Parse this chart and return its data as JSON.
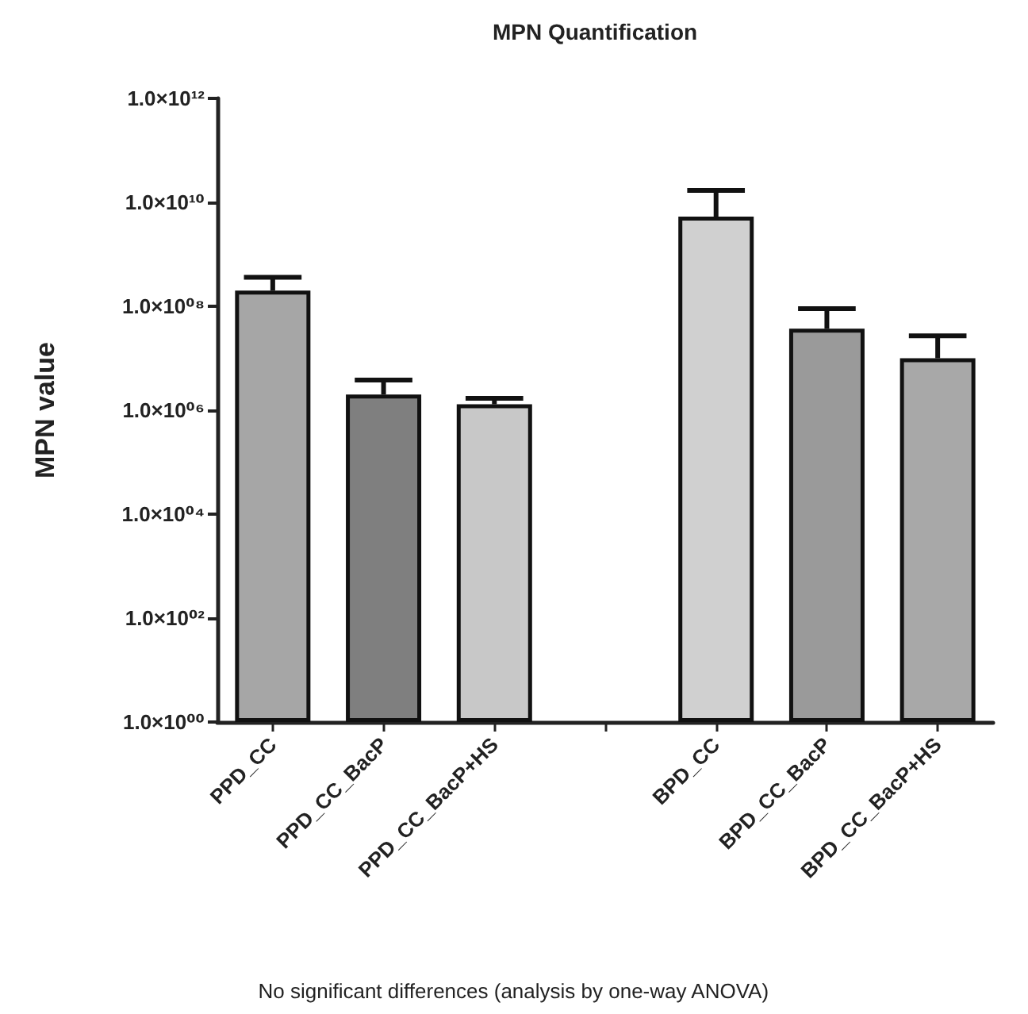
{
  "chart_data": {
    "type": "bar",
    "title": "MPN Quantification",
    "ylabel": "MPN value",
    "annotations": [
      "No significant differences (analysis by one-way ANOVA)"
    ],
    "categories": [
      "PPD_CC",
      "PPD_CC_BacP",
      "PPD_CC_BacP+HS",
      null,
      "BPD_CC",
      "BPD_CC_BacP",
      "BPD_CC_BacP+HS"
    ],
    "values": [
      200000000,
      2000000,
      1300000,
      null,
      5300000000,
      37000000,
      10000000
    ],
    "errors": [
      [
        200000000,
        360000000
      ],
      [
        2000000,
        3800000
      ],
      [
        1300000,
        1700000
      ],
      null,
      [
        5300000000,
        17000000000
      ],
      [
        37000000,
        90000000
      ],
      [
        10000000,
        27000000
      ]
    ],
    "colors": [
      "#a6a6a6",
      "#7f7f7f",
      "#c8c8c8",
      null,
      "#d0d0d0",
      "#9a9a9a",
      "#a8a8a8"
    ],
    "log": "y",
    "ylim": [
      1,
      1000000000000
    ],
    "yticks": [
      {
        "value": 1,
        "label": "1.0×10⁰⁰"
      },
      {
        "value": 100,
        "label": "1.0×10⁰²"
      },
      {
        "value": 10000,
        "label": "1.0×10⁰⁴"
      },
      {
        "value": 1000000,
        "label": "1.0×10⁰⁶"
      },
      {
        "value": 100000000,
        "label": "1.0×10⁰⁸"
      },
      {
        "value": 10000000000,
        "label": "1.0×10¹⁰"
      },
      {
        "value": 1000000000000,
        "label": "1.0×10¹²"
      }
    ],
    "grid": false
  }
}
